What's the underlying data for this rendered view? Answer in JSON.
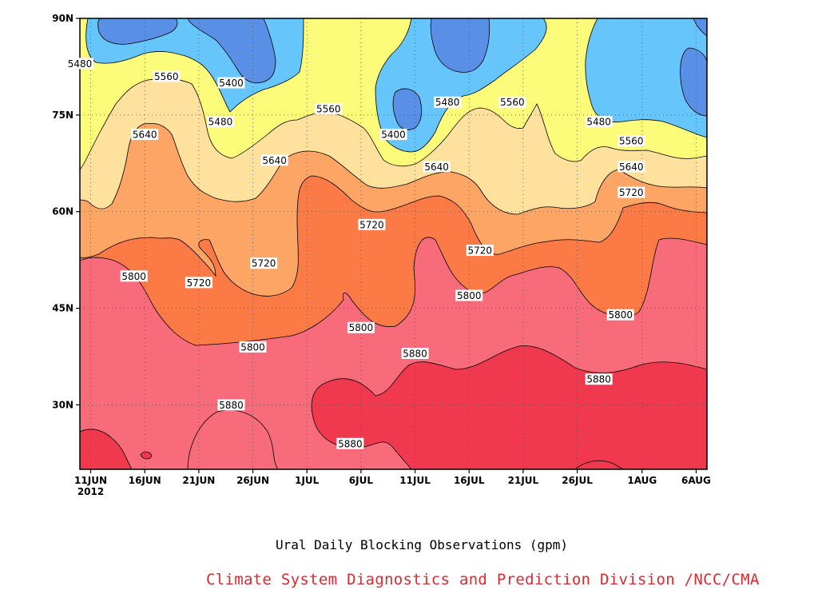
{
  "chart_data": {
    "type": "contour",
    "title": "Ural Daily Blocking Observations (gpm)",
    "xlabel": "",
    "ylabel": "",
    "x_ticks": [
      "11JUN",
      "16JUN",
      "21JUN",
      "26JUN",
      "1JUL",
      "6JUL",
      "11JUL",
      "16JUL",
      "21JUL",
      "26JUL",
      "1AUG",
      "6AUG"
    ],
    "x_year_label": "2012",
    "xlim": [
      "10JUN2012",
      "7AUG2012"
    ],
    "y_ticks": [
      "30N",
      "45N",
      "60N",
      "75N",
      "90N"
    ],
    "ylim": [
      20,
      90
    ],
    "grid": true,
    "contour_levels": [
      5400,
      5480,
      5560,
      5640,
      5720,
      5800,
      5880
    ],
    "level_colors": [
      "#5a8fe6",
      "#66c6fc",
      "#fcfc7a",
      "#fde19d",
      "#fca565",
      "#fc7a45",
      "#f76b7b",
      "#f0384f"
    ],
    "contour_labels": [
      {
        "value": 5480,
        "date": "10JUN",
        "lat": 83
      },
      {
        "value": 5560,
        "date": "18JUN",
        "lat": 81
      },
      {
        "value": 5400,
        "date": "24JUN",
        "lat": 80
      },
      {
        "value": 5480,
        "date": "23JUN",
        "lat": 74
      },
      {
        "value": 5560,
        "date": "3JUL",
        "lat": 76
      },
      {
        "value": 5640,
        "date": "16JUN",
        "lat": 72
      },
      {
        "value": 5640,
        "date": "28JUN",
        "lat": 68
      },
      {
        "value": 5400,
        "date": "9JUL",
        "lat": 72
      },
      {
        "value": 5480,
        "date": "14JUL",
        "lat": 77
      },
      {
        "value": 5560,
        "date": "20JUL",
        "lat": 77
      },
      {
        "value": 5480,
        "date": "28JUL",
        "lat": 74
      },
      {
        "value": 5560,
        "date": "31JUL",
        "lat": 71
      },
      {
        "value": 5640,
        "date": "13JUL",
        "lat": 67
      },
      {
        "value": 5640,
        "date": "31JUL",
        "lat": 67
      },
      {
        "value": 5720,
        "date": "31JUL",
        "lat": 63
      },
      {
        "value": 5720,
        "date": "7JUL",
        "lat": 58
      },
      {
        "value": 5720,
        "date": "17JUL",
        "lat": 54
      },
      {
        "value": 5800,
        "date": "15JUN",
        "lat": 50
      },
      {
        "value": 5720,
        "date": "21JUN",
        "lat": 49
      },
      {
        "value": 5720,
        "date": "27JUN",
        "lat": 52
      },
      {
        "value": 5800,
        "date": "6JUL",
        "lat": 42
      },
      {
        "value": 5800,
        "date": "16JUL",
        "lat": 47
      },
      {
        "value": 5800,
        "date": "30JUL",
        "lat": 44
      },
      {
        "value": 5800,
        "date": "26JUN",
        "lat": 39
      },
      {
        "value": 5880,
        "date": "11JUL",
        "lat": 38
      },
      {
        "value": 5880,
        "date": "28JUL",
        "lat": 34
      },
      {
        "value": 5880,
        "date": "24JUN",
        "lat": 30
      },
      {
        "value": 5880,
        "date": "5JUL",
        "lat": 24
      }
    ]
  },
  "caption": {
    "title": "Ural Daily Blocking Observations (gpm)",
    "credit": "Climate System Diagnostics and Prediction Division /NCC/CMA",
    "credit_color": "#e0282f"
  }
}
